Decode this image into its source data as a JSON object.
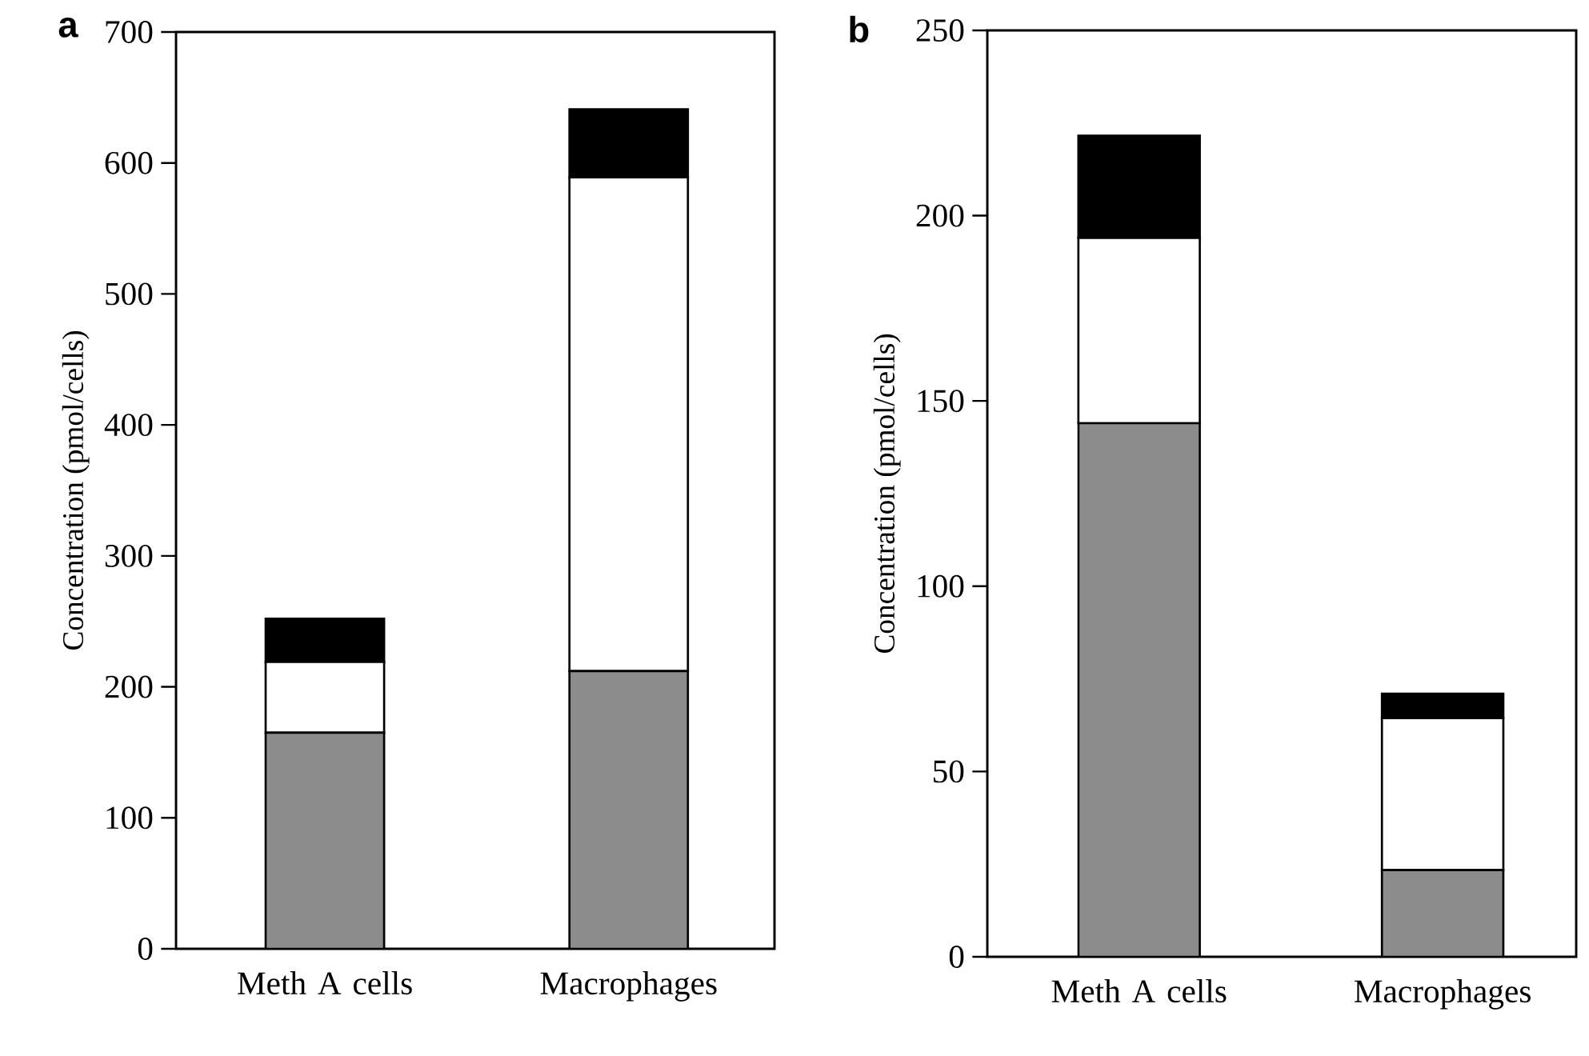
{
  "chart_data": [
    {
      "type": "bar",
      "title": "a",
      "ylabel": "Concentration (pmol/cells)",
      "categories": [
        "Meth A cells",
        "Macrophages"
      ],
      "stacked": true,
      "ylim": [
        0,
        700
      ],
      "yticks": [
        0,
        100,
        200,
        300,
        400,
        500,
        600,
        700
      ],
      "series": [
        {
          "color": "#8c8c8c",
          "values": [
            165,
            212
          ]
        },
        {
          "color": "#ffffff",
          "values": [
            54,
            377
          ]
        },
        {
          "color": "#000000",
          "values": [
            33,
            52
          ]
        }
      ]
    },
    {
      "type": "bar",
      "title": "b",
      "ylabel": "Concentration (pmol/cells)",
      "categories": [
        "Meth A cells",
        "Macrophages"
      ],
      "stacked": true,
      "ylim": [
        0,
        250
      ],
      "yticks": [
        0,
        50,
        100,
        150,
        200,
        250
      ],
      "series": [
        {
          "color": "#8c8c8c",
          "values": [
            144,
            23.4
          ]
        },
        {
          "color": "#ffffff",
          "values": [
            50,
            41
          ]
        },
        {
          "color": "#000000",
          "values": [
            27.6,
            6.6
          ]
        }
      ]
    }
  ]
}
